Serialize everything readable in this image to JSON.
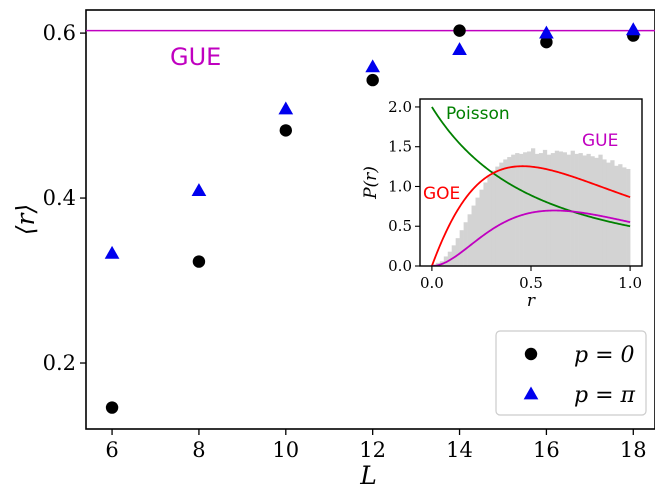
{
  "chart_data": [
    {
      "type": "scatter",
      "xlabel": "L",
      "ylabel": "⟨r⟩",
      "xlim": [
        5.4,
        18.5
      ],
      "ylim": [
        0.12,
        0.628
      ],
      "x_ticks": [
        6,
        8,
        10,
        12,
        14,
        16,
        18
      ],
      "x_tick_labels": [
        "6",
        "8",
        "10",
        "12",
        "14",
        "16",
        "18"
      ],
      "y_ticks": [
        0.2,
        0.4,
        0.6
      ],
      "y_tick_labels": [
        "0.2",
        "0.4",
        "0.6"
      ],
      "reference_line": {
        "label": "GUE",
        "y": 0.603,
        "color": "#c000c0"
      },
      "legend_placement": "lower-right",
      "series": [
        {
          "name": "p = 0",
          "marker": "circle",
          "color": "#000000",
          "x": [
            6,
            8,
            10,
            12,
            14,
            16,
            18
          ],
          "y": [
            0.146,
            0.323,
            0.482,
            0.543,
            0.603,
            0.589,
            0.597
          ]
        },
        {
          "name": "p = π",
          "marker": "triangle",
          "color": "#0000ee",
          "x": [
            6,
            8,
            10,
            12,
            14,
            16,
            18
          ],
          "y": [
            0.333,
            0.409,
            0.508,
            0.559,
            0.58,
            0.6,
            0.604
          ]
        }
      ]
    },
    {
      "type": "line",
      "placement": "inset top-right",
      "xlabel": "r",
      "ylabel": "P(r)",
      "xlim": [
        -0.06,
        1.06
      ],
      "ylim": [
        0,
        2.1
      ],
      "x_ticks": [
        0,
        0.5,
        1
      ],
      "x_tick_labels": [
        "0.0",
        "0.5",
        "1.0"
      ],
      "y_ticks": [
        0,
        0.5,
        1,
        1.5,
        2
      ],
      "y_tick_labels": [
        "0.0",
        "0.5",
        "1.0",
        "1.5",
        "2.0"
      ],
      "series": [
        {
          "name": "Poisson",
          "color": "#008000",
          "formula": "2/(1+r)^2"
        },
        {
          "name": "GOE",
          "color": "#ff0000",
          "formula": "(27/4)(r+r^2)/(1+r+r^2)^2.5"
        },
        {
          "name": "GUE",
          "color": "#c000c0",
          "formula": "(81*sqrt(3)/(4*pi))(r+r^2)^2/(1+r+r^2)^4"
        }
      ],
      "histogram": {
        "color": "#d3d3d3",
        "bin_width": 0.02,
        "counts": [
          0.02,
          0.04,
          0.06,
          0.12,
          0.18,
          0.26,
          0.35,
          0.45,
          0.55,
          0.65,
          0.76,
          0.86,
          0.96,
          1.05,
          1.13,
          1.2,
          1.25,
          1.3,
          1.34,
          1.37,
          1.4,
          1.42,
          1.41,
          1.43,
          1.44,
          1.48,
          1.41,
          1.42,
          1.46,
          1.4,
          1.42,
          1.45,
          1.44,
          1.43,
          1.4,
          1.45,
          1.41,
          1.42,
          1.39,
          1.41,
          1.38,
          1.36,
          1.4,
          1.34,
          1.3,
          1.33,
          1.26,
          1.28,
          1.24,
          1.22
        ]
      }
    }
  ]
}
